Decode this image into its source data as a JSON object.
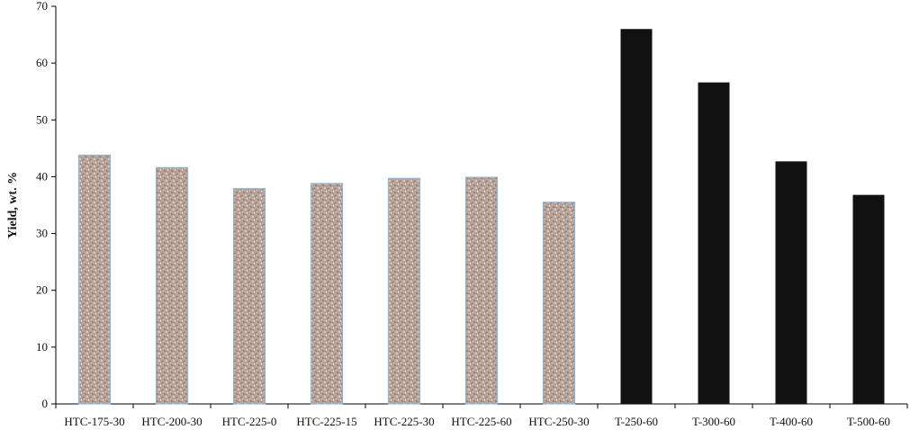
{
  "chart_data": {
    "type": "bar",
    "title": "",
    "xlabel": "",
    "ylabel": "Yield,  wt. %",
    "ylim": [
      0,
      70
    ],
    "yticks": [
      0,
      10,
      20,
      30,
      40,
      50,
      60,
      70
    ],
    "grid": false,
    "categories": [
      "HTC-175-30",
      "HTC-200-30",
      "HTC-225-0",
      "HTC-225-15",
      "HTC-225-30",
      "HTC-225-60",
      "HTC-250-30",
      "T-250-60",
      "T-300-60",
      "T-400-60",
      "T-500-60"
    ],
    "values": [
      43.8,
      41.6,
      37.9,
      38.8,
      39.7,
      39.9,
      35.5,
      66.0,
      56.6,
      42.7,
      36.8
    ],
    "bar_styles": [
      "textured",
      "textured",
      "textured",
      "textured",
      "textured",
      "textured",
      "textured",
      "solid",
      "solid",
      "solid",
      "solid"
    ],
    "colors": {
      "textured_fill": "#b8a49a",
      "textured_edge": "#8fb4d4",
      "solid_fill": "#111111"
    }
  }
}
